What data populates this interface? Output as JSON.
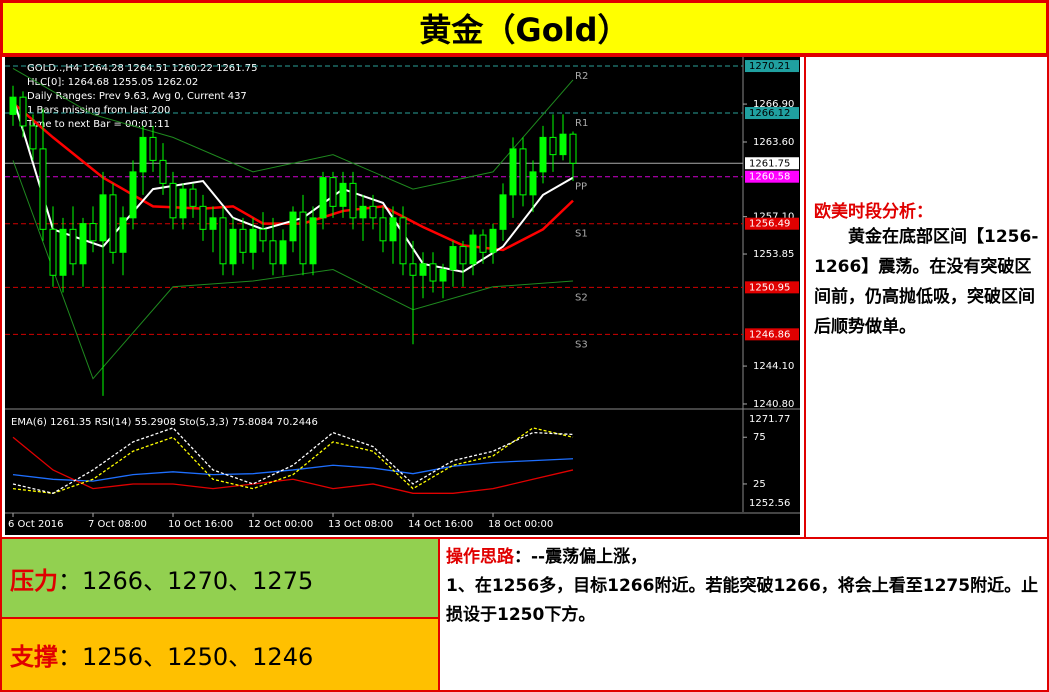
{
  "header": {
    "title": "黄金（Gold）"
  },
  "chart_data": [
    {
      "type": "candlestick",
      "info_lines": [
        "GOLD..,H4  1264.28 1264.51 1260.22 1261.75",
        "HLC[0]: 1264.68 1255.05 1262.02",
        "Daily Ranges:  Prev 9.63,  Avg 0,   Current 437",
        "1 Bars missing from last 200",
        "Time to next Bar = 00:01:11"
      ],
      "categories": [
        "6 Oct 2016",
        null,
        null,
        null,
        null,
        null,
        null,
        null,
        "7 Oct 08:00",
        null,
        null,
        null,
        null,
        null,
        null,
        null,
        "10 Oct 16:00",
        null,
        null,
        null,
        null,
        null,
        null,
        null,
        "12 Oct 00:00",
        null,
        null,
        null,
        null,
        null,
        null,
        null,
        "13 Oct 08:00",
        null,
        null,
        null,
        null,
        null,
        null,
        null,
        "14 Oct 16:00",
        null,
        null,
        null,
        null,
        null,
        null,
        null,
        "18 Oct 00:00",
        null,
        null,
        null,
        null,
        null,
        null,
        null,
        null
      ],
      "candles": [
        [
          1266,
          1268.5,
          1265,
          1267.5
        ],
        [
          1267.5,
          1268,
          1264,
          1265
        ],
        [
          1265,
          1266,
          1262,
          1263
        ],
        [
          1263,
          1266.5,
          1255,
          1256
        ],
        [
          1256,
          1258,
          1251,
          1252
        ],
        [
          1252,
          1257,
          1250.5,
          1256
        ],
        [
          1256,
          1258,
          1252,
          1253
        ],
        [
          1253,
          1257,
          1251,
          1256.5
        ],
        [
          1256.5,
          1258,
          1254,
          1255
        ],
        [
          1255,
          1261,
          1241.5,
          1259
        ],
        [
          1259,
          1260,
          1253,
          1254
        ],
        [
          1254,
          1258,
          1252,
          1257
        ],
        [
          1257,
          1262,
          1256,
          1261
        ],
        [
          1261,
          1265,
          1259,
          1264
        ],
        [
          1264,
          1265,
          1261,
          1262
        ],
        [
          1262,
          1263.5,
          1259,
          1260
        ],
        [
          1260,
          1261,
          1256,
          1257
        ],
        [
          1257,
          1260,
          1256,
          1259.5
        ],
        [
          1259.5,
          1260,
          1257,
          1258
        ],
        [
          1258,
          1259,
          1255,
          1256
        ],
        [
          1256,
          1258,
          1254,
          1257
        ],
        [
          1257,
          1258,
          1252,
          1253
        ],
        [
          1253,
          1257,
          1252,
          1256
        ],
        [
          1256,
          1257,
          1253,
          1254
        ],
        [
          1254,
          1257,
          1252.5,
          1256
        ],
        [
          1256,
          1257.5,
          1254,
          1255
        ],
        [
          1255,
          1257,
          1252,
          1253
        ],
        [
          1253,
          1256,
          1252,
          1255
        ],
        [
          1255,
          1258,
          1254,
          1257.5
        ],
        [
          1257.5,
          1259,
          1252,
          1253
        ],
        [
          1253,
          1258,
          1252,
          1257
        ],
        [
          1257,
          1261,
          1256,
          1260.5
        ],
        [
          1260.5,
          1261,
          1257,
          1258
        ],
        [
          1258,
          1261,
          1257,
          1260
        ],
        [
          1260,
          1261,
          1256,
          1257
        ],
        [
          1257,
          1259,
          1255,
          1258
        ],
        [
          1258,
          1259,
          1256,
          1257
        ],
        [
          1257,
          1258,
          1254,
          1255
        ],
        [
          1255,
          1258,
          1253,
          1257
        ],
        [
          1257,
          1258,
          1252,
          1253
        ],
        [
          1253,
          1255,
          1246,
          1252
        ],
        [
          1252,
          1254,
          1250,
          1253
        ],
        [
          1253,
          1254,
          1250.5,
          1251.5
        ],
        [
          1251.5,
          1253,
          1250,
          1252.5
        ],
        [
          1252.5,
          1255,
          1251,
          1254.5
        ],
        [
          1254.5,
          1255,
          1251,
          1253
        ],
        [
          1253,
          1256,
          1252,
          1255.5
        ],
        [
          1255.5,
          1256,
          1253,
          1254
        ],
        [
          1254,
          1256.5,
          1253,
          1256
        ],
        [
          1256,
          1260,
          1255,
          1259
        ],
        [
          1259,
          1264,
          1257,
          1263
        ],
        [
          1263,
          1264,
          1258,
          1259
        ],
        [
          1259,
          1262,
          1257.5,
          1261
        ],
        [
          1261,
          1265,
          1260,
          1264
        ],
        [
          1264,
          1266,
          1261,
          1262.5
        ],
        [
          1262.5,
          1266,
          1262,
          1264.28
        ],
        [
          1264.28,
          1264.51,
          1260.22,
          1261.75
        ]
      ],
      "up_color": "#00ff00",
      "down_color": "#00ff00",
      "down_fill": "#000000",
      "series": [
        {
          "color": "#ff0000",
          "width": 2.5,
          "x": [
            0,
            4,
            9,
            14,
            19,
            22,
            25,
            29,
            33,
            37,
            41,
            45,
            49,
            53,
            56
          ],
          "values": [
            1267,
            1264,
            1260.5,
            1258,
            1257.8,
            1258,
            1256.5,
            1256.5,
            1257.6,
            1258,
            1256.2,
            1254.6,
            1254.2,
            1256,
            1258.5
          ]
        },
        {
          "color": "#ffffff",
          "width": 2,
          "x": [
            0,
            4,
            9,
            14,
            19,
            22,
            25,
            29,
            33,
            37,
            41,
            45,
            49,
            53,
            56
          ],
          "values": [
            1267.5,
            1256,
            1254.5,
            1259.5,
            1260.2,
            1257,
            1256,
            1257,
            1259.5,
            1258.3,
            1253,
            1252.3,
            1254.5,
            1259,
            1260.5
          ]
        },
        {
          "color": "#1f8a1f",
          "width": 1,
          "x": [
            0,
            8,
            16,
            24,
            32,
            40,
            48,
            56
          ],
          "values": [
            1270,
            1266,
            1264,
            1261,
            1262.5,
            1259.5,
            1261,
            1269
          ]
        },
        {
          "color": "#1f8a1f",
          "width": 1,
          "x": [
            0,
            8,
            16,
            24,
            32,
            40,
            48,
            56
          ],
          "values": [
            1262,
            1243,
            1251,
            1251.5,
            1252.5,
            1249,
            1251,
            1251.5
          ]
        }
      ],
      "levels": [
        {
          "name": "R2",
          "value": 1270.21,
          "color": "#2aa198",
          "box": "#20a0a0"
        },
        {
          "name": "R1",
          "value": 1266.12,
          "color": "#2aa198",
          "box": "#20a0a0"
        },
        {
          "name": "PP",
          "value": 1260.58,
          "color": "#d000d0",
          "box": "#ff00ff"
        },
        {
          "name": "S1",
          "value": 1256.49,
          "color": "#d00000",
          "box": "#e00000"
        },
        {
          "name": "S2",
          "value": 1250.95,
          "color": "#d00000",
          "box": "#e00000"
        },
        {
          "name": "S3",
          "value": 1246.86,
          "color": "#d00000",
          "box": "#e00000"
        }
      ],
      "current": 1261.75,
      "ylim": [
        1240.45,
        1270.91
      ],
      "yticks": [
        {
          "value": 1266.9,
          "label": "1266.90"
        },
        {
          "value": 1263.6,
          "label": "1263.60"
        },
        {
          "value": 1257.1,
          "label": "1257.10"
        },
        1253.85,
        {
          "value": 1244.1,
          "label": "1244.10"
        },
        {
          "value": 1240.8,
          "label": "1240.80"
        }
      ]
    },
    {
      "type": "line",
      "title": "EMA(6) 1261.35  RSI(14) 55.2908  Sto(5,3,3) 75.8084 70.2446",
      "edge_labels": [
        "1271.77",
        "1252.56"
      ],
      "ylim": [
        -5,
        102
      ],
      "yticks": [
        75,
        25
      ],
      "series": [
        {
          "color": "#1e6fff",
          "dash": false,
          "x": [
            0,
            4,
            8,
            12,
            16,
            20,
            24,
            28,
            32,
            36,
            40,
            44,
            48,
            52,
            56
          ],
          "values": [
            35,
            30,
            28,
            35,
            38,
            35,
            36,
            40,
            45,
            42,
            36,
            44,
            48,
            50,
            52
          ]
        },
        {
          "color": "#e00000",
          "dash": false,
          "x": [
            0,
            4,
            8,
            12,
            16,
            20,
            24,
            28,
            32,
            36,
            40,
            44,
            48,
            52,
            56
          ],
          "values": [
            75,
            40,
            20,
            25,
            25,
            20,
            25,
            30,
            20,
            25,
            15,
            15,
            20,
            30,
            40
          ]
        },
        {
          "color": "#ffff00",
          "dash": true,
          "x": [
            0,
            4,
            8,
            12,
            16,
            20,
            24,
            28,
            32,
            36,
            40,
            44,
            48,
            52,
            56
          ],
          "values": [
            20,
            15,
            30,
            60,
            75,
            30,
            20,
            35,
            70,
            60,
            20,
            45,
            55,
            85,
            75
          ]
        },
        {
          "color": "#ffffff",
          "dash": true,
          "x": [
            0,
            4,
            8,
            12,
            16,
            20,
            24,
            28,
            32,
            36,
            40,
            44,
            48,
            52,
            56
          ],
          "values": [
            25,
            15,
            40,
            70,
            85,
            40,
            25,
            45,
            80,
            65,
            25,
            50,
            60,
            80,
            78
          ]
        }
      ]
    }
  ],
  "analysis": {
    "title": "欧美时段分析：",
    "body": "黄金在底部区间【1256-1266】震荡。在没有突破区间前，仍高抛低吸，突破区间后顺势做单。"
  },
  "levels": {
    "resistance": {
      "label": "压力",
      "text": "：1266、1270、1275"
    },
    "support": {
      "label": "支撑",
      "text": "：1256、1250、1246"
    }
  },
  "strategy": {
    "title": "操作思路",
    "subtitle": "：--震荡偏上涨，",
    "body": "1、在1256多，目标1266附近。若能突破1266，将会上看至1275附近。止损设于1250下方。"
  }
}
